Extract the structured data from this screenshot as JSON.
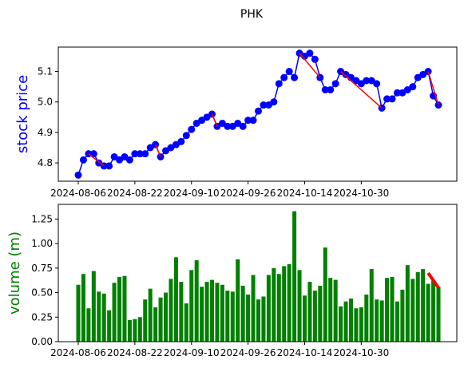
{
  "chart_data": [
    {
      "type": "line",
      "title": "PHK",
      "ylabel": "stock price",
      "ylabel_color": "#0000ff",
      "ylim": [
        4.74,
        5.18
      ],
      "yticks": [
        4.8,
        4.9,
        5.0,
        5.1
      ],
      "x_tick_labels": [
        "2024-08-06",
        "2024-08-22",
        "2024-09-10",
        "2024-09-26",
        "2024-10-14",
        "2024-10-30"
      ],
      "series": [
        {
          "line_color": "#0000ff",
          "marker_color": "#0000ff",
          "values": [
            4.76,
            4.81,
            4.83,
            4.83,
            4.8,
            4.79,
            4.79,
            4.82,
            4.81,
            4.82,
            4.81,
            4.83,
            4.83,
            4.83,
            4.85,
            4.86,
            4.82,
            4.84,
            4.85,
            4.86,
            4.87,
            4.89,
            4.91,
            4.93,
            4.94,
            4.95,
            4.96,
            4.92,
            4.93,
            4.92,
            4.92,
            4.93,
            4.92,
            4.94,
            4.94,
            4.97,
            4.99,
            4.99,
            5.0,
            5.06,
            5.08,
            5.1,
            5.08,
            5.16,
            5.15,
            5.16,
            5.14,
            5.08,
            5.04,
            5.04,
            5.06,
            5.1,
            5.09,
            5.08,
            5.07,
            5.06,
            5.07,
            5.07,
            5.06,
            4.98,
            5.01,
            5.01,
            5.03,
            5.03,
            5.04,
            5.05,
            5.08,
            5.09,
            5.1,
            5.02,
            4.99
          ]
        }
      ],
      "highlight_color": "#ff0000",
      "highlight_segments": [
        [
          2,
          5
        ],
        [
          15,
          16
        ],
        [
          26,
          27
        ],
        [
          43,
          47
        ],
        [
          51,
          59
        ],
        [
          68,
          70
        ]
      ]
    },
    {
      "type": "bar",
      "ylabel": "volume (m)",
      "ylabel_color": "#008000",
      "ylim": [
        0,
        1.4
      ],
      "yticks": [
        "0.00",
        "0.25",
        "0.50",
        "0.75",
        "1.00",
        "1.25"
      ],
      "x_tick_labels": [
        "2024-08-06",
        "2024-08-22",
        "2024-09-10",
        "2024-09-26",
        "2024-10-14",
        "2024-10-30"
      ],
      "bar_color": "#008000",
      "values": [
        0.58,
        0.69,
        0.34,
        0.72,
        0.51,
        0.49,
        0.32,
        0.6,
        0.66,
        0.67,
        0.22,
        0.23,
        0.25,
        0.43,
        0.54,
        0.35,
        0.45,
        0.5,
        0.64,
        0.86,
        0.61,
        0.39,
        0.73,
        0.83,
        0.56,
        0.61,
        0.63,
        0.6,
        0.58,
        0.52,
        0.51,
        0.84,
        0.57,
        0.48,
        0.68,
        0.43,
        0.46,
        0.68,
        0.75,
        0.69,
        0.77,
        0.79,
        1.33,
        0.73,
        0.47,
        0.61,
        0.52,
        0.57,
        0.96,
        0.65,
        0.63,
        0.36,
        0.41,
        0.44,
        0.34,
        0.35,
        0.48,
        0.74,
        0.43,
        0.42,
        0.65,
        0.66,
        0.41,
        0.53,
        0.78,
        0.64,
        0.71,
        0.74,
        0.59,
        0.62,
        0.56
      ],
      "highlight_color": "#ff0000",
      "highlight_segment": [
        68,
        70
      ],
      "highlight_values": [
        0.7,
        0.55
      ]
    }
  ]
}
